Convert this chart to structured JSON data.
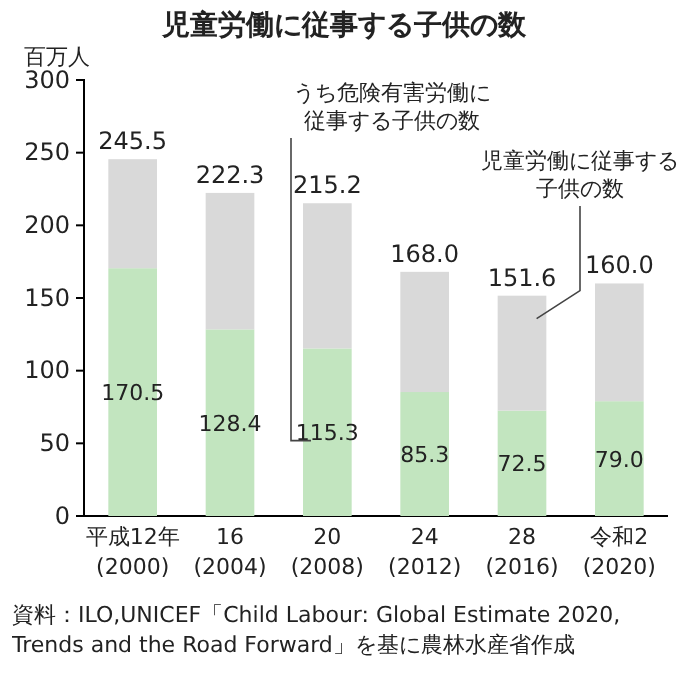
{
  "chart_data": {
    "type": "bar",
    "title": "児童労働に従事する子供の数",
    "ylabel": "百万人",
    "categories": [
      "平成12年\n(2000)",
      "16\n(2004)",
      "20\n(2008)",
      "24\n(2012)",
      "28\n(2016)",
      "令和2\n(2020)"
    ],
    "stacked": true,
    "series": [
      {
        "name": "うち危険有害労働に従事する子供の数",
        "color": "#c2e5bf",
        "values": [
          170.5,
          128.4,
          115.3,
          85.3,
          72.5,
          79.0
        ],
        "value_labels": [
          "170.5",
          "128.4",
          "115.3",
          "85.3",
          "72.5",
          "79.0"
        ]
      },
      {
        "name": "児童労働に従事する子供の数",
        "color": "#d9d9d9",
        "values": [
          75.0,
          93.9,
          99.9,
          82.7,
          79.1,
          81.0
        ]
      }
    ],
    "totals": [
      "245.5",
      "222.3",
      "215.2",
      "168.0",
      "151.6",
      "160.0"
    ],
    "ylim": [
      0,
      300
    ],
    "yticks": [
      0,
      50,
      100,
      150,
      200,
      250,
      300
    ],
    "annotations": [
      "資料：ILO,UNICEF「Child Labour: Global Estimate 2020, Trends and the Road Forward」を基に農林水産省作成"
    ]
  }
}
